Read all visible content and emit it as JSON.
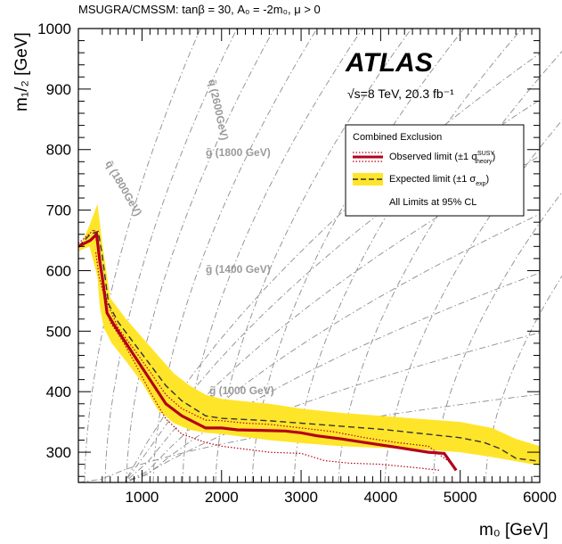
{
  "header": {
    "title": "MSUGRA/CMSSM: tanβ = 30, A₀ = -2m₀, μ > 0"
  },
  "experiment": {
    "name": "ATLAS",
    "energy_lumi": "√s=8 TeV, 20.3 fb⁻¹"
  },
  "legend": {
    "title": "Combined Exclusion",
    "observed": "Observed limit (±1 σ",
    "observed_sup": "SUSY",
    "observed_sub": "theory",
    "observed_close": ")",
    "expected": "Expected limit (±1 σ",
    "expected_sub": "exp",
    "expected_close": ")",
    "note": "All Limits at 95% CL"
  },
  "mass_labels": {
    "squark_2600": "q̃ (2600GeV)",
    "squark_1800": "q̃ (1800GeV)",
    "gluino_1800": "g̃ (1800 GeV)",
    "gluino_1400": "g̃ (1400 GeV)",
    "gluino_1000": "g̃ (1000 GeV)"
  },
  "colors": {
    "observed": "#b3001b",
    "expected_band": "#ffe52a",
    "expected_line": "#333333",
    "contours": "#8c8c8c"
  },
  "chart_data": {
    "type": "line",
    "xlabel": "m₀ [GeV]",
    "ylabel": "m₁/₂ [GeV]",
    "xlim": [
      200,
      6000
    ],
    "ylim": [
      250,
      1000
    ],
    "xticks": [
      1000,
      2000,
      3000,
      4000,
      5000,
      6000
    ],
    "yticks": [
      300,
      400,
      500,
      600,
      700,
      800,
      900,
      1000
    ],
    "grid": true,
    "legend_position": "top-right",
    "series": [
      {
        "name": "Observed limit",
        "x": [
          200,
          350,
          430,
          470,
          500,
          560,
          650,
          750,
          900,
          1100,
          1300,
          1500,
          1800,
          2000,
          2200,
          2500,
          2800,
          3000,
          3200,
          3500,
          3800,
          4200,
          4600,
          4800,
          4950
        ],
        "y": [
          640,
          650,
          660,
          615,
          590,
          530,
          510,
          490,
          460,
          420,
          380,
          360,
          340,
          340,
          337,
          336,
          335,
          332,
          327,
          322,
          316,
          308,
          300,
          298,
          270
        ]
      },
      {
        "name": "Observed limit -1σ theory",
        "x": [
          420,
          460,
          520,
          600,
          750,
          900,
          1100,
          1300,
          1500,
          1800,
          2000,
          2300,
          2600,
          3000,
          3300,
          3600,
          4000,
          4400,
          4750
        ],
        "y": [
          630,
          590,
          560,
          515,
          485,
          450,
          400,
          355,
          330,
          316,
          310,
          305,
          300,
          298,
          286,
          282,
          280,
          275,
          270
        ]
      },
      {
        "name": "Observed limit +1σ theory",
        "x": [
          200,
          400,
          460,
          560,
          700,
          900,
          1100,
          1300,
          1500,
          1800,
          2000,
          2300,
          2600,
          3000,
          3400,
          3800,
          4200,
          4600,
          4900
        ],
        "y": [
          645,
          668,
          625,
          548,
          505,
          470,
          433,
          395,
          372,
          353,
          352,
          348,
          346,
          340,
          334,
          324,
          316,
          310,
          280
        ]
      },
      {
        "name": "Expected limit",
        "x": [
          200,
          350,
          450,
          500,
          580,
          700,
          900,
          1100,
          1300,
          1500,
          1800,
          2000,
          2300,
          2600,
          3000,
          3500,
          4000,
          4500,
          5000,
          5300,
          5500,
          5700,
          6000
        ],
        "y": [
          640,
          660,
          665,
          625,
          545,
          515,
          480,
          445,
          410,
          385,
          360,
          356,
          354,
          352,
          348,
          343,
          338,
          331,
          324,
          316,
          306,
          290,
          285
        ]
      }
    ],
    "bands": [
      {
        "name": "Expected limit ±1σ exp",
        "upper": {
          "x": [
            200,
            340,
            440,
            470,
            500,
            600,
            800,
            1000,
            1200,
            1400,
            1600,
            1800,
            2000,
            2300,
            2600,
            3000,
            3500,
            4000,
            4500,
            5000,
            5400,
            5700,
            6000
          ],
          "y": [
            632,
            675,
            710,
            680,
            645,
            555,
            520,
            490,
            460,
            430,
            410,
            395,
            388,
            384,
            380,
            372,
            365,
            360,
            355,
            350,
            340,
            322,
            310
          ]
        },
        "lower": {
          "x": [
            200,
            340,
            440,
            470,
            520,
            620,
            800,
            1000,
            1200,
            1400,
            1600,
            1800,
            2000,
            2300,
            2600,
            3000,
            3500,
            4000,
            4500,
            5000,
            5400,
            5700,
            6000
          ],
          "y": [
            632,
            640,
            590,
            540,
            505,
            480,
            450,
            415,
            370,
            348,
            337,
            332,
            330,
            325,
            320,
            315,
            310,
            307,
            305,
            300,
            292,
            285,
            278
          ]
        }
      }
    ]
  }
}
